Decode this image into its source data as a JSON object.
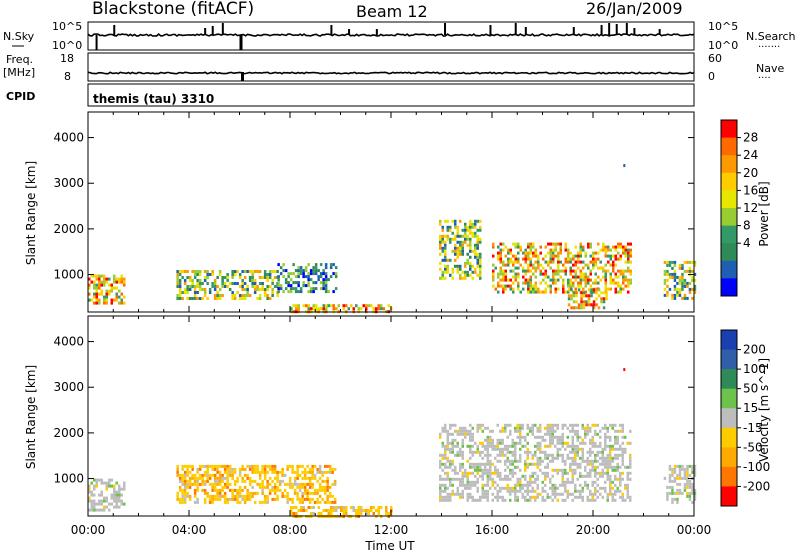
{
  "header": {
    "title": "Blackstone (fitACF)",
    "beam": "Beam 12",
    "date": "26/Jan/2009",
    "program": "themis (tau) 3310"
  },
  "side_labels": {
    "nsky": "N.Sky",
    "freq": "Freq.",
    "freq_unit": "[MHz]",
    "cpid": "CPID",
    "nsearch": "N.Search",
    "nsearch_dots": "·······",
    "nave": "Nave",
    "nave_dots": "····"
  },
  "small_ticks": {
    "nsky_top": "10^5",
    "nsky_bottom": "10^0",
    "nsearch_top": "10^5",
    "nsearch_bottom": "10^0",
    "freq_top": "18",
    "freq_bottom": "8",
    "nave_top": "60",
    "nave_bottom": "0"
  },
  "power_colorbar": {
    "label": "Power [dB]",
    "ticks": [
      "28",
      "24",
      "20",
      "16",
      "12",
      "8",
      "4"
    ],
    "colors": [
      "#ff0000",
      "#ff6a00",
      "#ff9900",
      "#ffcc00",
      "#e6e600",
      "#99cc33",
      "#339966",
      "#2e8b57",
      "#1f5fb3",
      "#0000ff"
    ]
  },
  "velocity_colorbar": {
    "label": "Velocity [m s^-1]",
    "ticks": [
      "200",
      "100",
      "50",
      "15",
      "-15",
      "-50",
      "-100",
      "-200"
    ],
    "colors": [
      "#1a3fb0",
      "#2e5fa8",
      "#2e8b57",
      "#6cc24a",
      "#bdbdbd",
      "#ffcc00",
      "#ffaa00",
      "#ff7700",
      "#ff0000"
    ]
  },
  "chart_data": {
    "type": "heatmap",
    "xlabel": "Time UT",
    "ylabel": "Slant Range [km]",
    "x_ticks": [
      "00:00",
      "04:00",
      "08:00",
      "12:00",
      "16:00",
      "20:00",
      "00:00"
    ],
    "y_ticks": [
      "1000",
      "2000",
      "3000",
      "4000"
    ],
    "xlim_hours": [
      0,
      24
    ],
    "ylim_km": [
      180,
      4560
    ],
    "panels": [
      {
        "name": "Power [dB]",
        "regions": [
          {
            "t0": 0.0,
            "t1": 1.4,
            "r0": 350,
            "r1": 1000,
            "level": "high"
          },
          {
            "t0": 3.5,
            "t1": 7.5,
            "r0": 500,
            "r1": 1100,
            "level": "medium"
          },
          {
            "t0": 7.5,
            "t1": 9.8,
            "r0": 600,
            "r1": 1250,
            "level": "low"
          },
          {
            "t0": 8.0,
            "t1": 12.0,
            "r0": 200,
            "r1": 350,
            "level": "high"
          },
          {
            "t0": 13.9,
            "t1": 15.5,
            "r0": 900,
            "r1": 2200,
            "level": "medium"
          },
          {
            "t0": 16.0,
            "t1": 21.5,
            "r0": 600,
            "r1": 1700,
            "level": "high"
          },
          {
            "t0": 19.0,
            "t1": 20.5,
            "r0": 250,
            "r1": 700,
            "level": "high"
          },
          {
            "t0": 22.8,
            "t1": 24.0,
            "r0": 500,
            "r1": 1300,
            "level": "medium"
          }
        ]
      },
      {
        "name": "Velocity [m s^-1]",
        "regions": [
          {
            "t0": 0.0,
            "t1": 1.4,
            "r0": 300,
            "r1": 1000,
            "level": "near-zero"
          },
          {
            "t0": 3.5,
            "t1": 9.8,
            "r0": 500,
            "r1": 1300,
            "level": "-15 to -50"
          },
          {
            "t0": 8.0,
            "t1": 12.0,
            "r0": 200,
            "r1": 400,
            "level": "-15 to -50"
          },
          {
            "t0": 13.9,
            "t1": 21.5,
            "r0": 500,
            "r1": 2200,
            "level": "near-zero"
          },
          {
            "t0": 22.8,
            "t1": 24.0,
            "r0": 500,
            "r1": 1300,
            "level": "near-zero"
          }
        ]
      }
    ]
  }
}
